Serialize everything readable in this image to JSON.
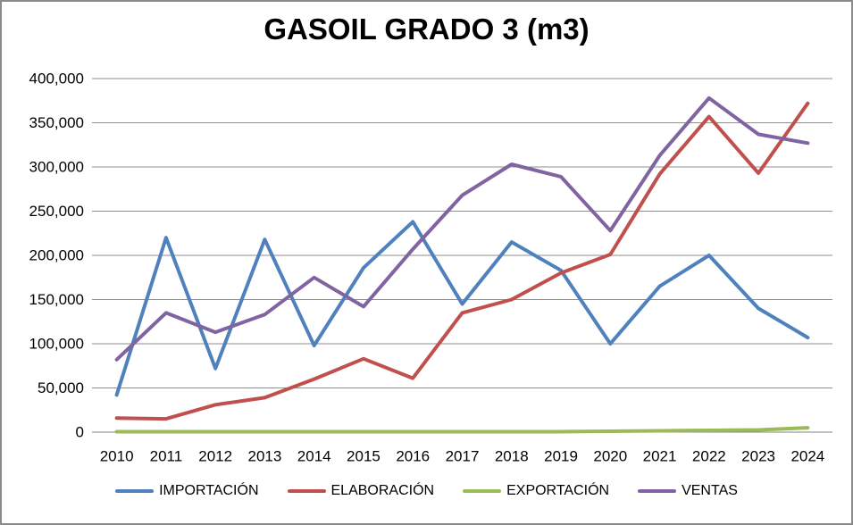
{
  "window": {
    "background": "#FFFFFF",
    "border_color": "#8A8A8A"
  },
  "chart_data": {
    "type": "line",
    "title": "GASOIL GRADO 3 (m3)",
    "categories": [
      "2010",
      "2011",
      "2012",
      "2013",
      "2014",
      "2015",
      "2016",
      "2017",
      "2018",
      "2019",
      "2020",
      "2021",
      "2022",
      "2023",
      "2024"
    ],
    "series": [
      {
        "name": "IMPORTACIÓN",
        "color": "#4F81BD",
        "values": [
          42000,
          220000,
          72000,
          218000,
          98000,
          186000,
          238000,
          145000,
          215000,
          183000,
          100000,
          165000,
          200000,
          140000,
          107000
        ]
      },
      {
        "name": "ELABORACIÓN",
        "color": "#C0504D",
        "values": [
          16000,
          15000,
          31000,
          39000,
          60000,
          83000,
          61000,
          135000,
          150000,
          180000,
          201000,
          292000,
          357000,
          293000,
          372000
        ]
      },
      {
        "name": "EXPORTACIÓN",
        "color": "#9BBB59",
        "values": [
          500,
          500,
          500,
          500,
          500,
          500,
          500,
          500,
          500,
          500,
          1000,
          1500,
          2000,
          2500,
          5000
        ]
      },
      {
        "name": "VENTAS",
        "color": "#8064A2",
        "values": [
          82000,
          135000,
          113000,
          133000,
          175000,
          142000,
          207000,
          268000,
          303000,
          289000,
          228000,
          313000,
          378000,
          337000,
          327000
        ]
      }
    ],
    "xlabel": "",
    "ylabel": "",
    "ylim": [
      0,
      400000
    ],
    "y_tick_values": [
      0,
      50000,
      100000,
      150000,
      200000,
      250000,
      300000,
      350000,
      400000
    ],
    "y_tick_labels": [
      "0",
      "50,000",
      "100,000",
      "150,000",
      "200,000",
      "250,000",
      "300,000",
      "350,000",
      "400,000"
    ],
    "grid": true,
    "gridline_color": "#8F8F8F",
    "axis_color": "#808080",
    "legend_position": "bottom"
  }
}
